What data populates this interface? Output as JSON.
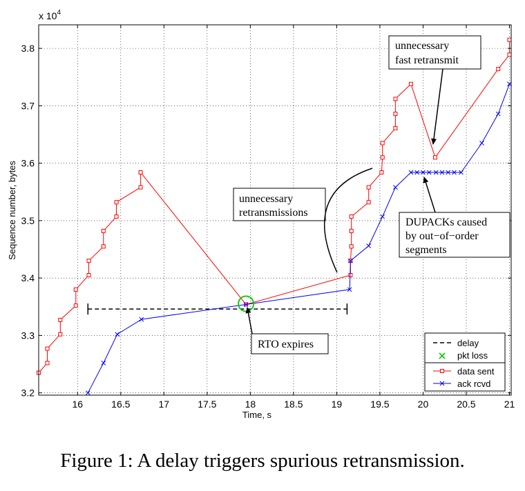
{
  "caption": "Figure 1: A delay triggers spurious retransmission.",
  "chart_data": {
    "type": "line",
    "xlabel": "Time, s",
    "ylabel": "Sequence number, bytes",
    "y_multiplier": "x 10",
    "y_multiplier_exp": "4",
    "xlim": [
      15.55,
      21.02
    ],
    "ylim": [
      3.196,
      3.841
    ],
    "xticks": [
      16,
      16.5,
      17,
      17.5,
      18,
      18.5,
      19,
      19.5,
      20,
      20.5,
      21
    ],
    "xtick_labels": [
      "16",
      "16.5",
      "17",
      "17.5",
      "18",
      "18.5",
      "19",
      "19.5",
      "20",
      "20.5",
      "21"
    ],
    "yticks": [
      3.2,
      3.3,
      3.4,
      3.5,
      3.6,
      3.7,
      3.8
    ],
    "ytick_labels": [
      "3.2",
      "3.3",
      "3.4",
      "3.5",
      "3.6",
      "3.7",
      "3.8"
    ],
    "grid": true,
    "legend_position": "bottom-right",
    "series": [
      {
        "name": "data sent",
        "color": "#ff0000",
        "marker": "square",
        "points": [
          [
            15.55,
            3.235
          ],
          [
            15.65,
            3.252
          ],
          [
            15.65,
            3.277
          ],
          [
            15.8,
            3.302
          ],
          [
            15.8,
            3.327
          ],
          [
            15.98,
            3.352
          ],
          [
            15.98,
            3.38
          ],
          [
            16.13,
            3.405
          ],
          [
            16.13,
            3.43
          ],
          [
            16.3,
            3.455
          ],
          [
            16.3,
            3.482
          ],
          [
            16.45,
            3.507
          ],
          [
            16.45,
            3.532
          ],
          [
            16.73,
            3.558
          ],
          [
            16.73,
            3.584
          ],
          [
            17.95,
            3.354
          ],
          [
            19.16,
            3.405
          ],
          [
            19.16,
            3.43
          ],
          [
            19.17,
            3.455
          ],
          [
            19.17,
            3.482
          ],
          [
            19.17,
            3.507
          ],
          [
            19.37,
            3.532
          ],
          [
            19.37,
            3.558
          ],
          [
            19.52,
            3.584
          ],
          [
            19.53,
            3.61
          ],
          [
            19.53,
            3.635
          ],
          [
            19.68,
            3.661
          ],
          [
            19.68,
            3.686
          ],
          [
            19.68,
            3.712
          ],
          [
            19.86,
            3.738
          ],
          [
            20.14,
            3.61
          ],
          [
            20.87,
            3.764
          ],
          [
            21.0,
            3.789
          ],
          [
            21.0,
            3.815
          ]
        ]
      },
      {
        "name": "ack rcvd",
        "color": "#0000ff",
        "marker": "x",
        "points": [
          [
            16.12,
            3.2
          ],
          [
            16.3,
            3.252
          ],
          [
            16.46,
            3.302
          ],
          [
            16.74,
            3.328
          ],
          [
            17.95,
            3.354
          ],
          [
            19.15,
            3.38
          ],
          [
            19.16,
            3.43
          ],
          [
            19.37,
            3.456
          ],
          [
            19.53,
            3.507
          ],
          [
            19.68,
            3.558
          ],
          [
            19.86,
            3.584
          ],
          [
            19.93,
            3.584
          ],
          [
            20.0,
            3.584
          ],
          [
            20.07,
            3.584
          ],
          [
            20.15,
            3.584
          ],
          [
            20.22,
            3.584
          ],
          [
            20.29,
            3.584
          ],
          [
            20.36,
            3.584
          ],
          [
            20.44,
            3.584
          ],
          [
            20.68,
            3.635
          ],
          [
            20.87,
            3.686
          ],
          [
            21.0,
            3.738
          ]
        ]
      }
    ],
    "delay_interval": {
      "x": [
        16.12,
        19.12
      ],
      "y": 3.346
    },
    "rto_point": {
      "x": 17.95,
      "y": 3.354
    },
    "legend": [
      {
        "label": "delay",
        "style": "dashed",
        "color": "#000000"
      },
      {
        "label": "pkt loss",
        "style": "marker-x",
        "color": "#00cc00"
      },
      {
        "label": "data sent",
        "style": "line-square",
        "color": "#ff0000"
      },
      {
        "label": "ack rcvd",
        "style": "line-x",
        "color": "#0000ff"
      }
    ],
    "annotations": {
      "fast_retransmit": {
        "lines": [
          "unnecessary",
          "fast retransmit"
        ],
        "target": [
          20.14,
          3.61
        ]
      },
      "retransmissions": {
        "lines": [
          "unnecessary",
          "retransmissions"
        ]
      },
      "dupacks": {
        "lines": [
          "DUPACKs caused",
          "by out−of−order",
          "segments"
        ],
        "target": [
          20.07,
          3.584
        ]
      },
      "rto": {
        "lines": [
          "RTO expires"
        ],
        "target": [
          17.95,
          3.346
        ]
      }
    }
  }
}
